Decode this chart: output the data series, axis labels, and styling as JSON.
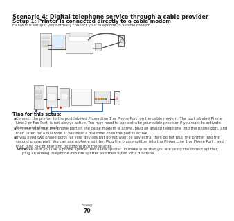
{
  "title": "Scenario 4: Digital telephone service through a cable provider",
  "subtitle": "Setup 1: Printer is connected directly to a cable modem",
  "intro": "Follow this setup if you normally connect your telephone to a cable modem.",
  "tips_header": "Tips for this setup:",
  "b1_line1": "Connect the printer to the port labeled ",
  "b1_bold1": "Phone Line 1",
  "b1_mid1": " or ",
  "b1_bold2": "Phone Port",
  "b1_end1": "  on the cable modem. The port labeled ",
  "b1_bold3": "Phone",
  "b1_line2": "Line 2",
  "b1_bold4": "Fax Port",
  "b1_rest": "  is not always active. You may need to pay extra to your cable provider if you want to activate",
  "b1_line3": "the second phone port.",
  "b2_text": "To make sure that the phone port on the cable modem is active, plug an analog telephone into the phone port, and\nthen listen for a dial tone. If you hear a dial tone, then the port is active.",
  "b3_line1": "If you need two phone ports for your devices but do not want to pay extra, then do not plug the printer into the",
  "b3_line2": "second phone port. You can use a phone splitter. Plug the phone splitter into the ",
  "b3_bold1": "Phone Line 1",
  "b3_mid": " or ",
  "b3_bold2": "Phone Port",
  "b3_end": " , and",
  "b3_line3": "then plug the printer and telephone into the splitter.",
  "note_bold": "Note:",
  "note_rest": " Make sure you use a phone splitter, not a line splitter. To make sure that you are using the correct splitter,",
  "note_line2": "plug an analog telephone into the splitter and then listen for a dial tone.",
  "footer_top": "Faxing",
  "footer_num": "70",
  "bg_color": "#ffffff",
  "text_color": "#3d3d3d",
  "title_color": "#1a1a1a"
}
